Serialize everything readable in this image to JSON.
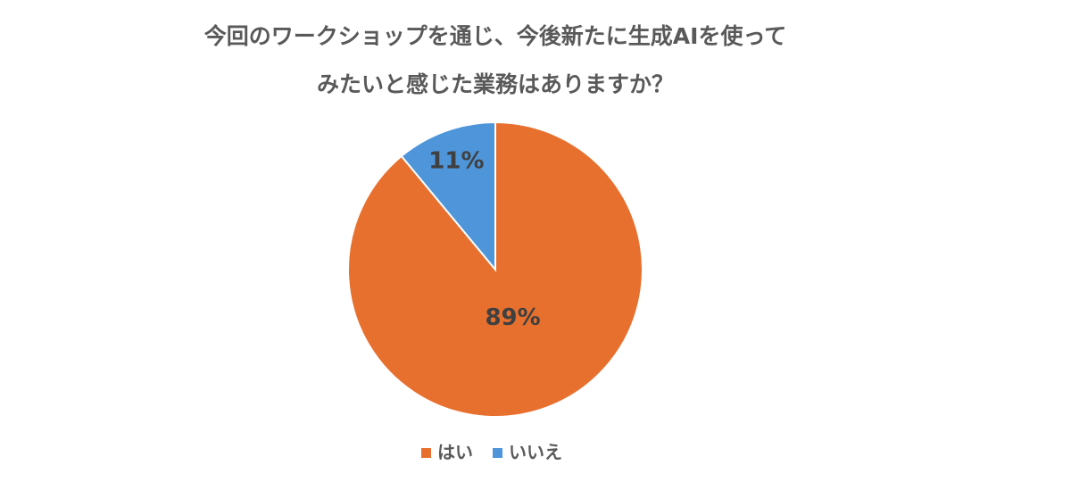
{
  "chart_data": {
    "type": "pie",
    "title": [
      "今回のワークショップを通じ、今後新たに生成AIを使って",
      "みたいと感じた業務はありますか？"
    ],
    "categories": [
      "はい",
      "いいえ"
    ],
    "values": [
      89,
      11
    ],
    "value_labels": [
      "89%",
      "11%"
    ],
    "colors": [
      "#e8702f",
      "#4e95d9"
    ],
    "legend": "bottom"
  }
}
